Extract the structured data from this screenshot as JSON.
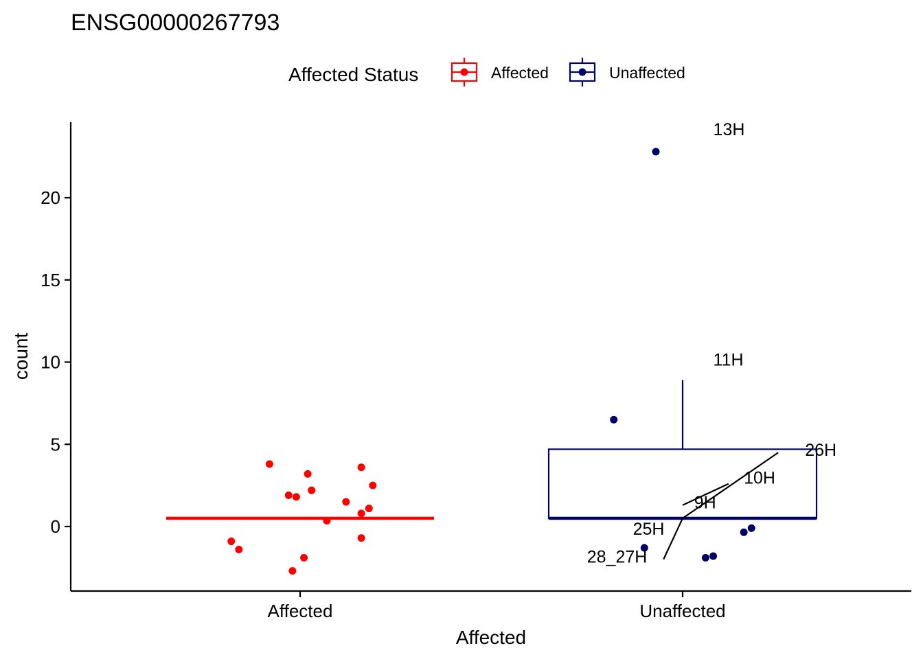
{
  "chart_data": {
    "type": "box",
    "title": "ENSG00000267793",
    "xlabel": "Affected",
    "ylabel": "count",
    "ylim": [
      -4,
      24.5
    ],
    "yticks": [
      0,
      5,
      10,
      15,
      20
    ],
    "categories": [
      "Affected",
      "Unaffected"
    ],
    "grid": false,
    "legend": {
      "title": "Affected Status",
      "position": "top",
      "entries": [
        {
          "name": "Affected",
          "color": "#ff0000"
        },
        {
          "name": "Unaffected",
          "color": "#000066"
        }
      ]
    },
    "series": [
      {
        "name": "Affected",
        "color": "#ff0000",
        "box": {
          "q1": 0.5,
          "median": 0.5,
          "q3": 0.5,
          "whisker_low": 0.5,
          "whisker_high": 0.5
        },
        "points": [
          {
            "jitter": -0.08,
            "y": 3.8
          },
          {
            "jitter": 0.02,
            "y": 3.2
          },
          {
            "jitter": 0.16,
            "y": 3.6
          },
          {
            "jitter": 0.19,
            "y": 2.5
          },
          {
            "jitter": 0.03,
            "y": 2.2
          },
          {
            "jitter": -0.03,
            "y": 1.9
          },
          {
            "jitter": -0.01,
            "y": 1.8
          },
          {
            "jitter": 0.12,
            "y": 1.5
          },
          {
            "jitter": 0.18,
            "y": 1.1
          },
          {
            "jitter": 0.16,
            "y": 0.8
          },
          {
            "jitter": 0.07,
            "y": 0.35
          },
          {
            "jitter": 0.16,
            "y": -0.7
          },
          {
            "jitter": -0.18,
            "y": -0.9
          },
          {
            "jitter": -0.16,
            "y": -1.4
          },
          {
            "jitter": 0.01,
            "y": -1.9
          },
          {
            "jitter": -0.02,
            "y": -2.7
          }
        ]
      },
      {
        "name": "Unaffected",
        "color": "#000066",
        "box": {
          "q1": 0.5,
          "median": 0.5,
          "q3": 4.7,
          "whisker_low": 0.5,
          "whisker_high": 8.9
        },
        "points": [
          {
            "jitter": -0.07,
            "y": 22.8
          },
          {
            "jitter": -0.18,
            "y": 6.5
          },
          {
            "jitter": 0.18,
            "y": -0.1
          },
          {
            "jitter": 0.16,
            "y": -0.35
          },
          {
            "jitter": -0.1,
            "y": -1.3
          },
          {
            "jitter": 0.08,
            "y": -1.8
          },
          {
            "jitter": 0.06,
            "y": -1.9
          }
        ]
      }
    ],
    "annotations": [
      {
        "text": "13H",
        "x": 1.08,
        "y": 23.8
      },
      {
        "text": "11H",
        "x": 1.08,
        "y": 9.8
      },
      {
        "text": "26H",
        "x": 1.32,
        "y": 4.3,
        "from": {
          "x": 1.25,
          "y": 4.5
        },
        "to": {
          "x": 1.0,
          "y": 0.5
        }
      },
      {
        "text": "10H",
        "x": 1.16,
        "y": 2.6,
        "from": {
          "x": 1.12,
          "y": 2.6
        },
        "to": {
          "x": 1.0,
          "y": 1.3
        }
      },
      {
        "text": "9H",
        "x": 1.03,
        "y": 1.1
      },
      {
        "text": "25H",
        "x": 0.87,
        "y": -0.5
      },
      {
        "text": "28_27H",
        "x": 0.75,
        "y": -2.2,
        "from": {
          "x": 0.95,
          "y": -2.0
        },
        "to": {
          "x": 1.0,
          "y": 0.5
        }
      }
    ]
  }
}
